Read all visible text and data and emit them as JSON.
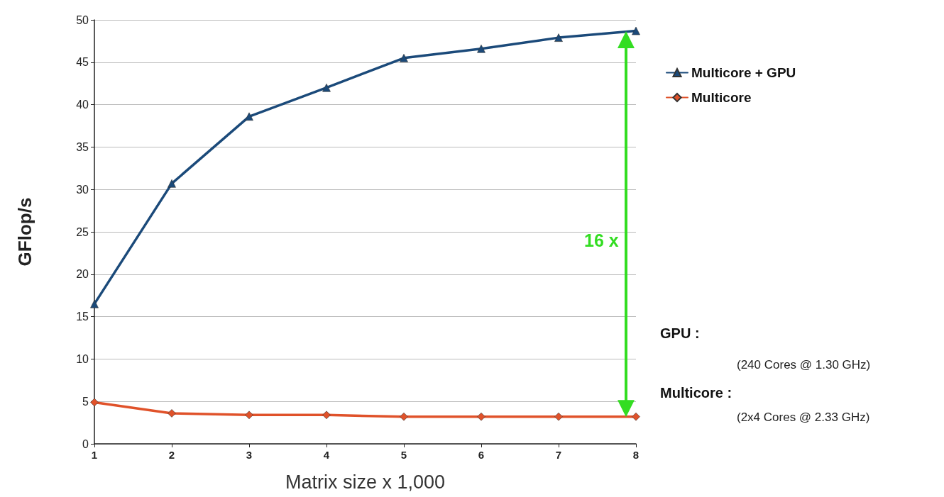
{
  "chart_data": {
    "type": "line",
    "ylabel": "GFlop/s",
    "xlabel": "Matrix size x 1,000",
    "x": [
      1,
      2,
      3,
      4,
      5,
      6,
      7,
      8
    ],
    "series": [
      {
        "name": "Multicore + GPU",
        "color": "#1b4a7a",
        "marker": "triangle",
        "values": [
          16.5,
          30.7,
          38.6,
          42,
          45.5,
          46.6,
          47.9,
          48.7
        ]
      },
      {
        "name": "Multicore",
        "color": "#e0522a",
        "marker": "diamond",
        "values": [
          4.9,
          3.6,
          3.4,
          3.4,
          3.2,
          3.2,
          3.2,
          3.2
        ]
      }
    ],
    "xlim": [
      1,
      8
    ],
    "xticks": [
      1,
      2,
      3,
      4,
      5,
      6,
      7,
      8
    ],
    "ylim": [
      0,
      50
    ],
    "yticks": [
      0,
      5,
      10,
      15,
      20,
      25,
      30,
      35,
      40,
      45,
      50
    ],
    "grid": "y",
    "legend": "right",
    "line_style": "solid",
    "annotations": [
      "16 x",
      "GPU :",
      "(240 Cores @ 1.30 GHz)",
      "Multicore :",
      "(2x4 Cores @ 2.33 GHz)"
    ]
  }
}
